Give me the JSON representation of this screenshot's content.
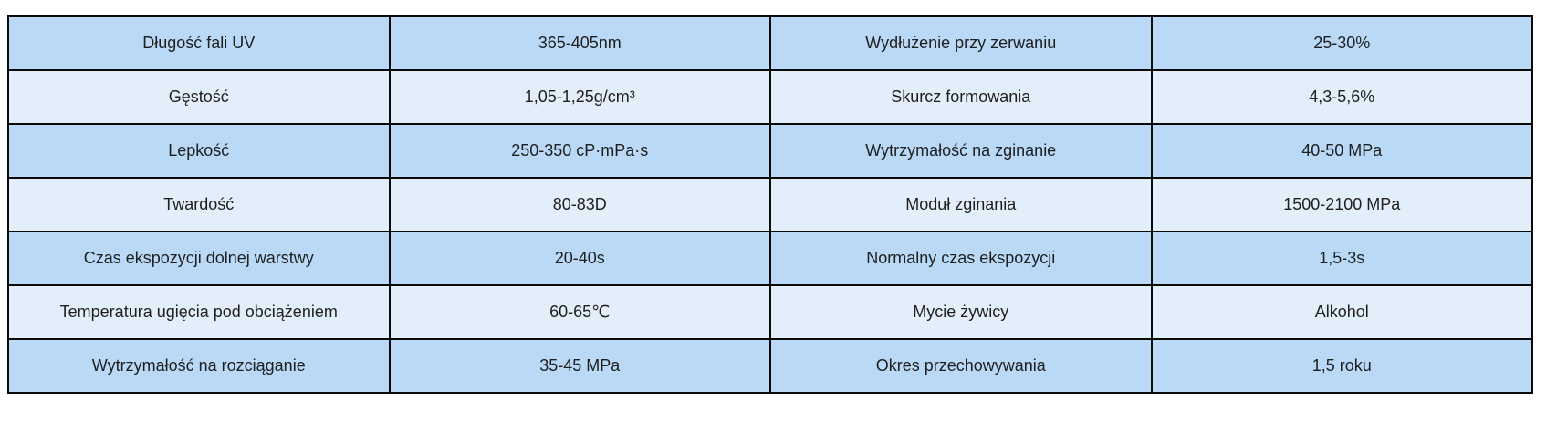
{
  "colors": {
    "page_bg": "#ffffff",
    "row_dark": "#b9d9f7",
    "row_light": "#e3eefb",
    "border": "#0a0a0a",
    "text": "#1f1f1f"
  },
  "chart_data": {
    "type": "table",
    "title": "",
    "grid": true,
    "layout": "4 equal columns: property / value / property / value; alternating row shading",
    "rows": [
      [
        "Długość fali UV",
        "365-405nm",
        "Wydłużenie przy zerwaniu",
        "25-30%"
      ],
      [
        "Gęstość",
        "1,05-1,25g/cm³",
        "Skurcz formowania",
        "4,3-5,6%"
      ],
      [
        "Lepkość",
        "250-350 cP·mPa·s",
        "Wytrzymałość na zginanie",
        "40-50 MPa"
      ],
      [
        "Twardość",
        "80-83D",
        "Moduł zginania",
        "1500-2100 MPa"
      ],
      [
        "Czas ekspozycji dolnej warstwy",
        "20-40s",
        "Normalny czas ekspozycji",
        "1,5-3s"
      ],
      [
        "Temperatura ugięcia pod obciążeniem",
        "60-65℃",
        "Mycie żywicy",
        "Alkohol"
      ],
      [
        "Wytrzymałość na rozciąganie",
        "35-45 MPa",
        "Okres przechowywania",
        "1,5 roku"
      ]
    ]
  }
}
